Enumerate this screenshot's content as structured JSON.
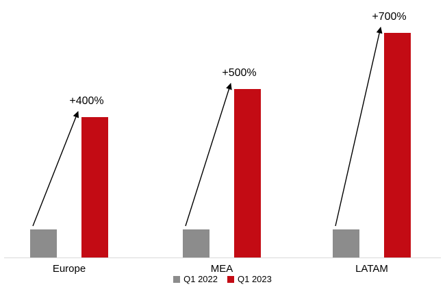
{
  "chart_data": {
    "type": "bar",
    "title": "",
    "xlabel": "",
    "ylabel": "",
    "categories": [
      "Europe",
      "MEA",
      "LATAM"
    ],
    "series": [
      {
        "name": "Q1 2022",
        "values": [
          1,
          1,
          1
        ],
        "color": "#8c8c8c"
      },
      {
        "name": "Q1 2023",
        "values": [
          5,
          6,
          8
        ],
        "color": "#c30b14"
      }
    ],
    "annotations": [
      {
        "category": "Europe",
        "label": "+400%"
      },
      {
        "category": "MEA",
        "label": "+500%"
      },
      {
        "category": "LATAM",
        "label": "+700%"
      }
    ],
    "ylim": [
      0,
      8.2
    ],
    "grid": false,
    "legend_position": "bottom",
    "axis_line_color": "#d9d9d9",
    "arrow_color": "#000000",
    "background": "#ffffff"
  }
}
